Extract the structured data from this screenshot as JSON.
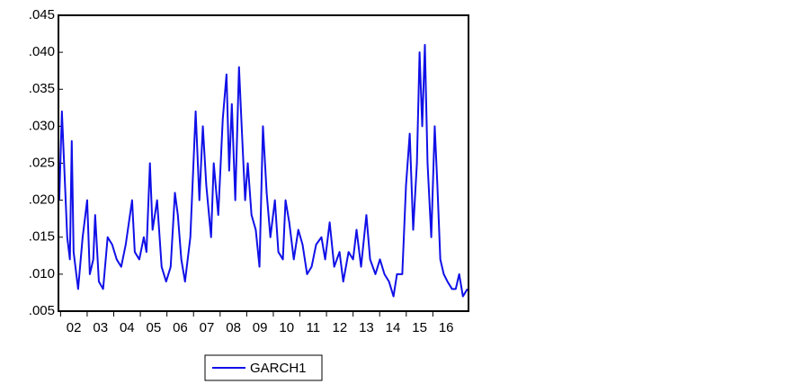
{
  "chart_data": {
    "type": "line",
    "x": [
      2001.95,
      2002.05,
      2002.25,
      2002.35,
      2002.42,
      2002.49,
      2002.66,
      2002.83,
      2003.0,
      2003.1,
      2003.23,
      2003.3,
      2003.44,
      2003.6,
      2003.77,
      2003.94,
      2004.11,
      2004.28,
      2004.45,
      2004.69,
      2004.79,
      2004.96,
      2005.13,
      2005.23,
      2005.36,
      2005.46,
      2005.63,
      2005.8,
      2005.97,
      2006.14,
      2006.3,
      2006.41,
      2006.54,
      2006.68,
      2006.88,
      2007.08,
      2007.22,
      2007.35,
      2007.48,
      2007.66,
      2007.76,
      2007.93,
      2008.1,
      2008.24,
      2008.34,
      2008.44,
      2008.57,
      2008.71,
      2008.81,
      2008.94,
      2009.04,
      2009.18,
      2009.34,
      2009.48,
      2009.61,
      2009.75,
      2009.89,
      2010.06,
      2010.19,
      2010.36,
      2010.46,
      2010.6,
      2010.77,
      2010.94,
      2011.1,
      2011.27,
      2011.44,
      2011.61,
      2011.81,
      2011.95,
      2012.12,
      2012.29,
      2012.49,
      2012.63,
      2012.83,
      2013.0,
      2013.13,
      2013.3,
      2013.5,
      2013.64,
      2013.84,
      2014.01,
      2014.18,
      2014.35,
      2014.52,
      2014.65,
      2014.85,
      2014.99,
      2015.13,
      2015.26,
      2015.4,
      2015.5,
      2015.6,
      2015.7,
      2015.8,
      2015.94,
      2016.07,
      2016.17,
      2016.28,
      2016.41,
      2016.55,
      2016.72,
      2016.86,
      2016.99,
      2017.13,
      2017.3
    ],
    "series": [
      {
        "name": "GARCH1",
        "color": "#1010e8",
        "values": [
          0.02,
          0.032,
          0.015,
          0.012,
          0.028,
          0.013,
          0.008,
          0.015,
          0.02,
          0.01,
          0.012,
          0.018,
          0.009,
          0.008,
          0.015,
          0.014,
          0.012,
          0.011,
          0.014,
          0.02,
          0.013,
          0.012,
          0.015,
          0.013,
          0.025,
          0.016,
          0.02,
          0.011,
          0.009,
          0.011,
          0.021,
          0.018,
          0.012,
          0.009,
          0.015,
          0.032,
          0.02,
          0.03,
          0.022,
          0.015,
          0.025,
          0.018,
          0.031,
          0.037,
          0.024,
          0.033,
          0.02,
          0.038,
          0.03,
          0.02,
          0.025,
          0.018,
          0.016,
          0.011,
          0.03,
          0.021,
          0.015,
          0.02,
          0.013,
          0.012,
          0.02,
          0.017,
          0.012,
          0.016,
          0.014,
          0.01,
          0.011,
          0.014,
          0.015,
          0.012,
          0.017,
          0.011,
          0.013,
          0.009,
          0.013,
          0.012,
          0.016,
          0.011,
          0.018,
          0.012,
          0.01,
          0.012,
          0.01,
          0.009,
          0.007,
          0.01,
          0.01,
          0.022,
          0.029,
          0.016,
          0.025,
          0.04,
          0.03,
          0.041,
          0.025,
          0.015,
          0.03,
          0.022,
          0.012,
          0.01,
          0.009,
          0.008,
          0.008,
          0.01,
          0.007,
          0.008
        ]
      }
    ],
    "xlim": [
      2001.92,
      2017.34
    ],
    "xticks": [
      {
        "value": 2002,
        "label": "02"
      },
      {
        "value": 2003,
        "label": "03"
      },
      {
        "value": 2004,
        "label": "04"
      },
      {
        "value": 2005,
        "label": "05"
      },
      {
        "value": 2006,
        "label": "06"
      },
      {
        "value": 2007,
        "label": "07"
      },
      {
        "value": 2008,
        "label": "08"
      },
      {
        "value": 2009,
        "label": "09"
      },
      {
        "value": 2010,
        "label": "10"
      },
      {
        "value": 2011,
        "label": "11"
      },
      {
        "value": 2012,
        "label": "12"
      },
      {
        "value": 2013,
        "label": "13"
      },
      {
        "value": 2014,
        "label": "14"
      },
      {
        "value": 2015,
        "label": "15"
      },
      {
        "value": 2016,
        "label": "16"
      }
    ],
    "ylim": [
      0.005,
      0.045
    ],
    "yticks": [
      {
        "value": 0.005,
        "label": ".005"
      },
      {
        "value": 0.01,
        "label": ".010"
      },
      {
        "value": 0.015,
        "label": ".015"
      },
      {
        "value": 0.02,
        "label": ".020"
      },
      {
        "value": 0.025,
        "label": ".025"
      },
      {
        "value": 0.03,
        "label": ".030"
      },
      {
        "value": 0.035,
        "label": ".035"
      },
      {
        "value": 0.04,
        "label": ".040"
      },
      {
        "value": 0.045,
        "label": ".045"
      }
    ],
    "grid": false,
    "legend": "bottom"
  }
}
